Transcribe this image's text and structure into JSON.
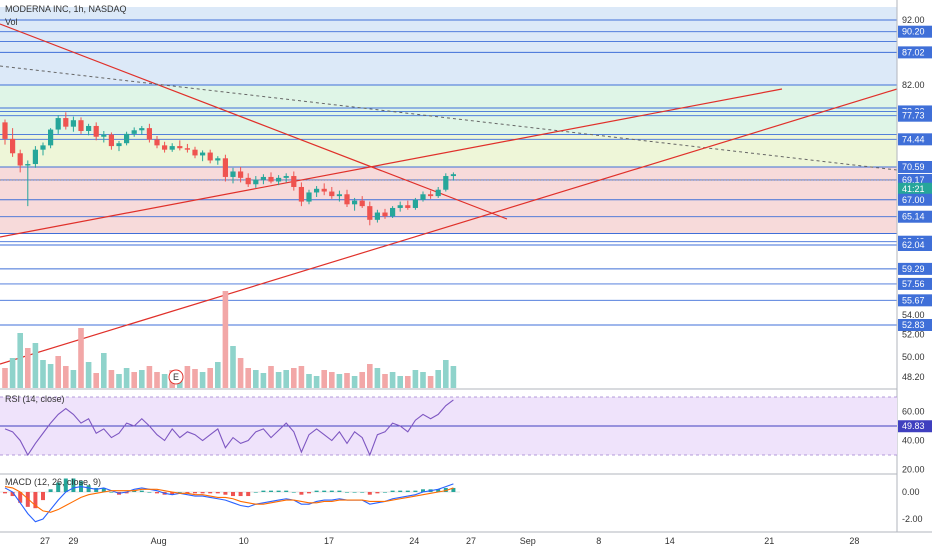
{
  "header": {
    "title": "MODERNA INC, 1h, NASDAQ",
    "volume_label": "Vol"
  },
  "chart_data": {
    "type": "candlestick",
    "title": "MODERNA INC, 1h, NASDAQ",
    "price_axis": {
      "range": [
        46.6,
        94.0
      ],
      "ticks": [
        92.0,
        82.0,
        54.0,
        52.0,
        50.0,
        48.2
      ],
      "tick_labels": [
        "92.00",
        "82.00",
        "54.00",
        "52.00",
        "50.00",
        "48.20"
      ],
      "level_tags": [
        {
          "value": 90.2,
          "label": "90.20",
          "color": "#3f6fd8"
        },
        {
          "value": 87.02,
          "label": "87.02",
          "color": "#3f6fd8"
        },
        {
          "value": 78.32,
          "label": "78.32",
          "color": "#3f6fd8"
        },
        {
          "value": 77.73,
          "label": "77.73",
          "color": "#3f6fd8"
        },
        {
          "value": 74.44,
          "label": "74.44",
          "color": "#3f6fd8"
        },
        {
          "value": 70.59,
          "label": "70.59",
          "color": "#3f6fd8"
        },
        {
          "value": 69.17,
          "label": "69.17",
          "color": "#3f6fd8"
        },
        {
          "value": 68.2,
          "label": "41:21",
          "color": "#26a69a"
        },
        {
          "value": 67.0,
          "label": "67.00",
          "color": "#3f6fd8"
        },
        {
          "value": 65.14,
          "label": "65.14",
          "color": "#3f6fd8"
        },
        {
          "value": 62.4,
          "label": "62.40",
          "color": "#3f6fd8"
        },
        {
          "value": 62.04,
          "label": "62.04",
          "color": "#3f6fd8"
        },
        {
          "value": 59.29,
          "label": "59.29",
          "color": "#3f6fd8"
        },
        {
          "value": 57.56,
          "label": "57.56",
          "color": "#3f6fd8"
        },
        {
          "value": 55.67,
          "label": "55.67",
          "color": "#3f6fd8"
        },
        {
          "value": 52.83,
          "label": "52.83",
          "color": "#3f6fd8"
        }
      ]
    },
    "horizontal_levels": [
      92.0,
      90.2,
      88.7,
      87.02,
      82.0,
      78.8,
      78.32,
      77.73,
      75.1,
      74.44,
      70.59,
      69.17,
      67.0,
      65.14,
      63.3,
      62.4,
      62.04,
      59.29,
      57.56,
      55.67,
      52.83
    ],
    "zones": [
      {
        "from": 82.0,
        "to": 94.0,
        "color": "#dce9f8"
      },
      {
        "from": 75.1,
        "to": 82.0,
        "color": "#dff5e7"
      },
      {
        "from": 70.59,
        "to": 75.1,
        "color": "#eef6d8"
      },
      {
        "from": 63.3,
        "to": 70.59,
        "color": "#f7dada"
      }
    ],
    "x_axis": {
      "range": [
        0,
        64
      ],
      "ticks": [
        {
          "x": 1,
          "label": "27"
        },
        {
          "x": 3,
          "label": "29"
        },
        {
          "x": 9,
          "label": "Aug"
        },
        {
          "x": 15,
          "label": "10"
        },
        {
          "x": 21,
          "label": "17"
        },
        {
          "x": 27,
          "label": "24"
        },
        {
          "x": 31,
          "label": "27"
        },
        {
          "x": 35,
          "label": "Sep"
        },
        {
          "x": 40,
          "label": "8"
        },
        {
          "x": 45,
          "label": "14"
        },
        {
          "x": 52,
          "label": "21"
        },
        {
          "x": 58,
          "label": "28"
        }
      ]
    },
    "candles": [
      [
        76.8,
        77.2,
        73.7,
        74.5
      ],
      [
        74.5,
        76.0,
        72.0,
        72.5
      ],
      [
        72.5,
        73.0,
        70.0,
        70.8
      ],
      [
        70.8,
        71.5,
        66.3,
        71.0
      ],
      [
        71.0,
        73.5,
        70.5,
        73.0
      ],
      [
        73.0,
        74.0,
        72.2,
        73.6
      ],
      [
        73.6,
        76.0,
        73.2,
        75.8
      ],
      [
        75.8,
        77.8,
        75.2,
        77.4
      ],
      [
        77.4,
        78.2,
        75.8,
        76.2
      ],
      [
        76.2,
        77.6,
        75.5,
        77.1
      ],
      [
        77.1,
        77.5,
        75.2,
        75.6
      ],
      [
        75.6,
        76.6,
        75.0,
        76.3
      ],
      [
        76.3,
        76.8,
        74.3,
        74.8
      ],
      [
        74.8,
        75.6,
        74.0,
        75.1
      ],
      [
        75.1,
        75.4,
        73.0,
        73.5
      ],
      [
        73.5,
        74.2,
        72.8,
        73.9
      ],
      [
        73.9,
        75.5,
        73.6,
        75.2
      ],
      [
        75.2,
        76.1,
        74.8,
        75.7
      ],
      [
        75.7,
        76.3,
        75.1,
        76.0
      ],
      [
        76.0,
        76.6,
        74.0,
        74.4
      ],
      [
        74.4,
        74.9,
        73.2,
        73.6
      ],
      [
        73.6,
        74.1,
        72.6,
        73.0
      ],
      [
        73.0,
        73.9,
        72.7,
        73.5
      ],
      [
        73.5,
        74.3,
        72.9,
        73.2
      ],
      [
        73.2,
        73.8,
        72.6,
        73.0
      ],
      [
        73.0,
        73.4,
        71.8,
        72.2
      ],
      [
        72.2,
        72.9,
        71.4,
        72.6
      ],
      [
        72.6,
        73.0,
        71.1,
        71.5
      ],
      [
        71.5,
        72.1,
        70.9,
        71.8
      ],
      [
        71.8,
        72.3,
        69.0,
        69.5
      ],
      [
        69.5,
        70.5,
        68.8,
        70.1
      ],
      [
        70.1,
        70.6,
        68.9,
        69.4
      ],
      [
        69.4,
        69.9,
        68.4,
        68.7
      ],
      [
        68.7,
        69.6,
        68.3,
        69.2
      ],
      [
        69.2,
        69.8,
        68.7,
        69.5
      ],
      [
        69.5,
        70.0,
        68.8,
        69.0
      ],
      [
        69.0,
        69.7,
        68.6,
        69.4
      ],
      [
        69.4,
        69.9,
        68.9,
        69.6
      ],
      [
        69.6,
        70.1,
        68.0,
        68.4
      ],
      [
        68.4,
        68.9,
        66.3,
        66.8
      ],
      [
        66.8,
        68.1,
        66.5,
        67.8
      ],
      [
        67.8,
        68.5,
        67.3,
        68.2
      ],
      [
        68.2,
        68.8,
        67.5,
        67.9
      ],
      [
        67.9,
        68.4,
        67.1,
        67.4
      ],
      [
        67.4,
        68.0,
        66.8,
        67.6
      ],
      [
        67.6,
        68.1,
        66.2,
        66.5
      ],
      [
        66.5,
        67.2,
        65.8,
        66.9
      ],
      [
        66.9,
        67.4,
        66.1,
        66.3
      ],
      [
        66.3,
        66.8,
        64.2,
        64.8
      ],
      [
        64.8,
        65.9,
        64.5,
        65.6
      ],
      [
        65.6,
        66.0,
        64.9,
        65.2
      ],
      [
        65.2,
        66.3,
        65.0,
        66.1
      ],
      [
        66.1,
        66.8,
        65.7,
        66.4
      ],
      [
        66.4,
        66.9,
        65.9,
        66.1
      ],
      [
        66.1,
        67.2,
        65.9,
        67.0
      ],
      [
        67.0,
        67.9,
        66.8,
        67.6
      ],
      [
        67.6,
        68.0,
        67.1,
        67.4
      ],
      [
        67.4,
        68.4,
        67.2,
        68.1
      ],
      [
        68.1,
        69.9,
        67.9,
        69.6
      ],
      [
        69.6,
        70.0,
        69.1,
        69.8
      ]
    ],
    "volume": [
      {
        "value": 20,
        "up": false
      },
      {
        "value": 30,
        "up": true
      },
      {
        "value": 55,
        "up": true
      },
      {
        "value": 40,
        "up": false
      },
      {
        "value": 45,
        "up": true
      },
      {
        "value": 28,
        "up": true
      },
      {
        "value": 24,
        "up": true
      },
      {
        "value": 32,
        "up": false
      },
      {
        "value": 22,
        "up": false
      },
      {
        "value": 18,
        "up": true
      },
      {
        "value": 60,
        "up": false
      },
      {
        "value": 26,
        "up": true
      },
      {
        "value": 15,
        "up": false
      },
      {
        "value": 35,
        "up": true
      },
      {
        "value": 18,
        "up": false
      },
      {
        "value": 14,
        "up": true
      },
      {
        "value": 20,
        "up": true
      },
      {
        "value": 16,
        "up": false
      },
      {
        "value": 18,
        "up": true
      },
      {
        "value": 22,
        "up": false
      },
      {
        "value": 16,
        "up": false
      },
      {
        "value": 14,
        "up": true
      },
      {
        "value": 18,
        "up": false
      },
      {
        "value": 15,
        "up": true
      },
      {
        "value": 22,
        "up": false
      },
      {
        "value": 19,
        "up": false
      },
      {
        "value": 16,
        "up": true
      },
      {
        "value": 20,
        "up": false
      },
      {
        "value": 26,
        "up": true
      },
      {
        "value": 97,
        "up": false
      },
      {
        "value": 42,
        "up": true
      },
      {
        "value": 30,
        "up": false
      },
      {
        "value": 20,
        "up": false
      },
      {
        "value": 18,
        "up": true
      },
      {
        "value": 15,
        "up": true
      },
      {
        "value": 22,
        "up": false
      },
      {
        "value": 16,
        "up": true
      },
      {
        "value": 18,
        "up": true
      },
      {
        "value": 20,
        "up": false
      },
      {
        "value": 22,
        "up": false
      },
      {
        "value": 14,
        "up": true
      },
      {
        "value": 12,
        "up": true
      },
      {
        "value": 18,
        "up": false
      },
      {
        "value": 16,
        "up": false
      },
      {
        "value": 14,
        "up": true
      },
      {
        "value": 15,
        "up": false
      },
      {
        "value": 12,
        "up": true
      },
      {
        "value": 16,
        "up": false
      },
      {
        "value": 24,
        "up": false
      },
      {
        "value": 20,
        "up": true
      },
      {
        "value": 14,
        "up": false
      },
      {
        "value": 16,
        "up": true
      },
      {
        "value": 12,
        "up": true
      },
      {
        "value": 12,
        "up": false
      },
      {
        "value": 18,
        "up": true
      },
      {
        "value": 16,
        "up": true
      },
      {
        "value": 12,
        "up": false
      },
      {
        "value": 18,
        "up": true
      },
      {
        "value": 28,
        "up": true
      },
      {
        "value": 22,
        "up": true
      }
    ],
    "earnings_marker": {
      "x": 25,
      "label": "E"
    },
    "rsi": {
      "label": "RSI (14, close)",
      "axis_ticks": [
        60.0,
        40.0,
        20.0
      ],
      "tick_labels": [
        "60.00",
        "40.00",
        "20.00"
      ],
      "current": 49.83,
      "current_label": "49.83",
      "band": [
        30,
        70
      ],
      "values": [
        48,
        46,
        40,
        30,
        38,
        45,
        52,
        58,
        62,
        58,
        52,
        55,
        45,
        48,
        42,
        45,
        52,
        50,
        55,
        50,
        44,
        40,
        48,
        42,
        46,
        44,
        40,
        44,
        48,
        35,
        42,
        38,
        40,
        46,
        48,
        42,
        47,
        52,
        46,
        32,
        44,
        48,
        44,
        40,
        46,
        38,
        46,
        42,
        30,
        44,
        46,
        52,
        50,
        46,
        54,
        58,
        55,
        58,
        64,
        68
      ]
    },
    "macd": {
      "label": "MACD (12, 26, close, 9)",
      "axis_ticks": [
        0.0,
        -2.0
      ],
      "tick_labels": [
        "0.00",
        "-2.00"
      ],
      "macd": [
        0.3,
        0.0,
        -0.8,
        -1.6,
        -2.2,
        -2.0,
        -1.3,
        -0.6,
        0.0,
        0.3,
        0.4,
        0.3,
        0.2,
        0.3,
        0.1,
        -0.1,
        0.0,
        0.2,
        0.3,
        0.2,
        0.1,
        -0.1,
        -0.2,
        -0.1,
        -0.2,
        -0.3,
        -0.3,
        -0.4,
        -0.5,
        -0.6,
        -0.8,
        -1.0,
        -1.1,
        -0.9,
        -0.8,
        -0.7,
        -0.6,
        -0.5,
        -0.6,
        -0.9,
        -0.9,
        -0.7,
        -0.6,
        -0.6,
        -0.5,
        -0.6,
        -0.6,
        -0.6,
        -0.9,
        -0.8,
        -0.7,
        -0.5,
        -0.4,
        -0.3,
        -0.2,
        0.0,
        0.1,
        0.2,
        0.4,
        0.6
      ],
      "signal": [
        0.4,
        0.3,
        0.0,
        -0.5,
        -1.0,
        -1.4,
        -1.5,
        -1.3,
        -1.0,
        -0.7,
        -0.4,
        -0.2,
        -0.1,
        0.0,
        0.1,
        0.1,
        0.1,
        0.1,
        0.2,
        0.2,
        0.2,
        0.1,
        0.0,
        -0.1,
        -0.1,
        -0.2,
        -0.2,
        -0.3,
        -0.4,
        -0.4,
        -0.5,
        -0.7,
        -0.8,
        -0.9,
        -0.9,
        -0.8,
        -0.7,
        -0.6,
        -0.6,
        -0.7,
        -0.8,
        -0.8,
        -0.7,
        -0.7,
        -0.6,
        -0.6,
        -0.6,
        -0.6,
        -0.7,
        -0.7,
        -0.7,
        -0.6,
        -0.5,
        -0.4,
        -0.3,
        -0.2,
        -0.1,
        0.0,
        0.1,
        0.3
      ]
    }
  }
}
